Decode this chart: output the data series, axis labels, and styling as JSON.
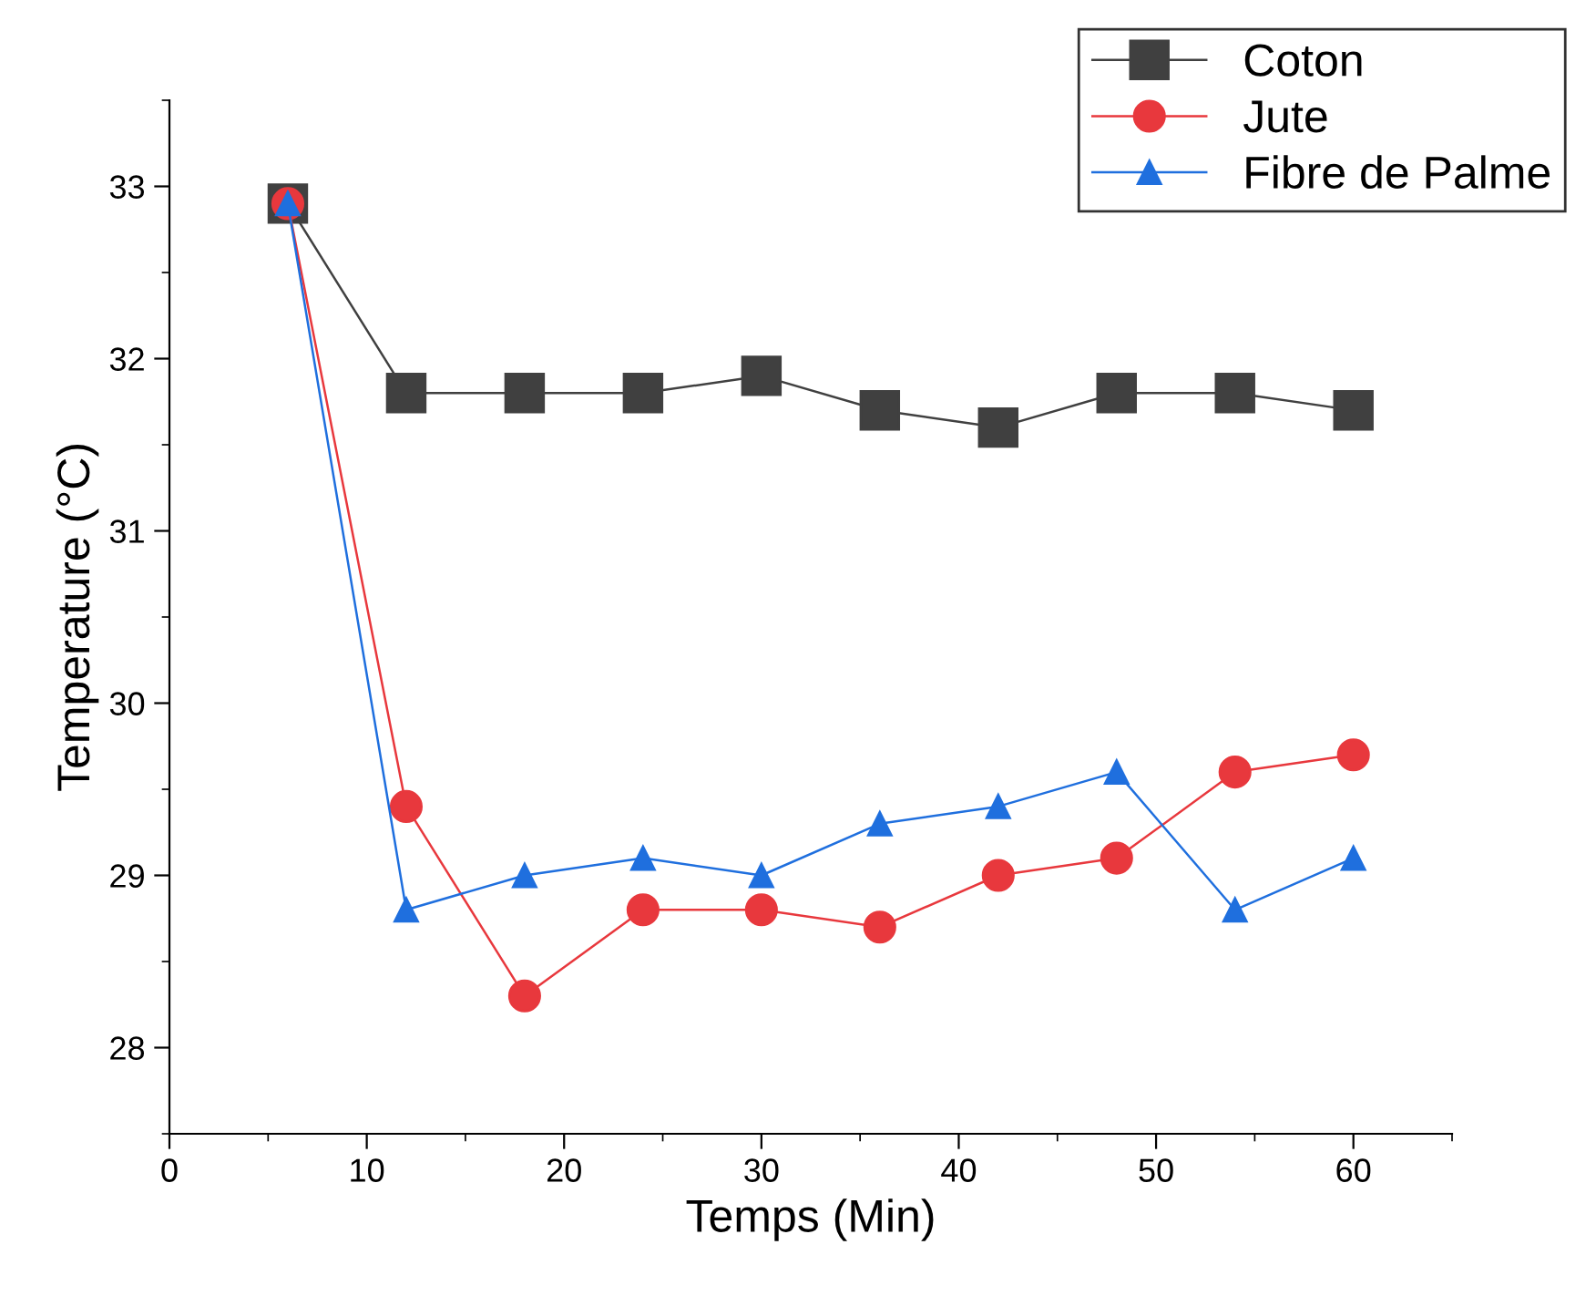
{
  "chart_data": {
    "type": "line",
    "xlabel": "Temps (Min)",
    "ylabel": "Temperature (°C)",
    "x": [
      6,
      12,
      18,
      24,
      30,
      36,
      42,
      48,
      54,
      60
    ],
    "series": [
      {
        "name": "Coton",
        "color": "#404040",
        "marker": "square",
        "values": [
          32.9,
          31.8,
          31.8,
          31.8,
          31.9,
          31.7,
          31.6,
          31.8,
          31.8,
          31.7
        ]
      },
      {
        "name": "Jute",
        "color": "#e8383d",
        "marker": "circle",
        "values": [
          32.9,
          29.4,
          28.3,
          28.8,
          28.8,
          28.7,
          29.0,
          29.1,
          29.6,
          29.7
        ]
      },
      {
        "name": "Fibre de Palme",
        "color": "#1f6fde",
        "marker": "triangle",
        "values": [
          32.9,
          28.8,
          29.0,
          29.1,
          29.0,
          29.3,
          29.4,
          29.6,
          28.8,
          29.1
        ]
      }
    ],
    "xlim": [
      0,
      65
    ],
    "xticks": [
      0,
      10,
      20,
      30,
      40,
      50,
      60
    ],
    "ylim": [
      27.5,
      33.5
    ],
    "yticks": [
      28,
      29,
      30,
      31,
      32,
      33
    ],
    "grid": false,
    "legend": "top right",
    "line_style": "solid"
  }
}
